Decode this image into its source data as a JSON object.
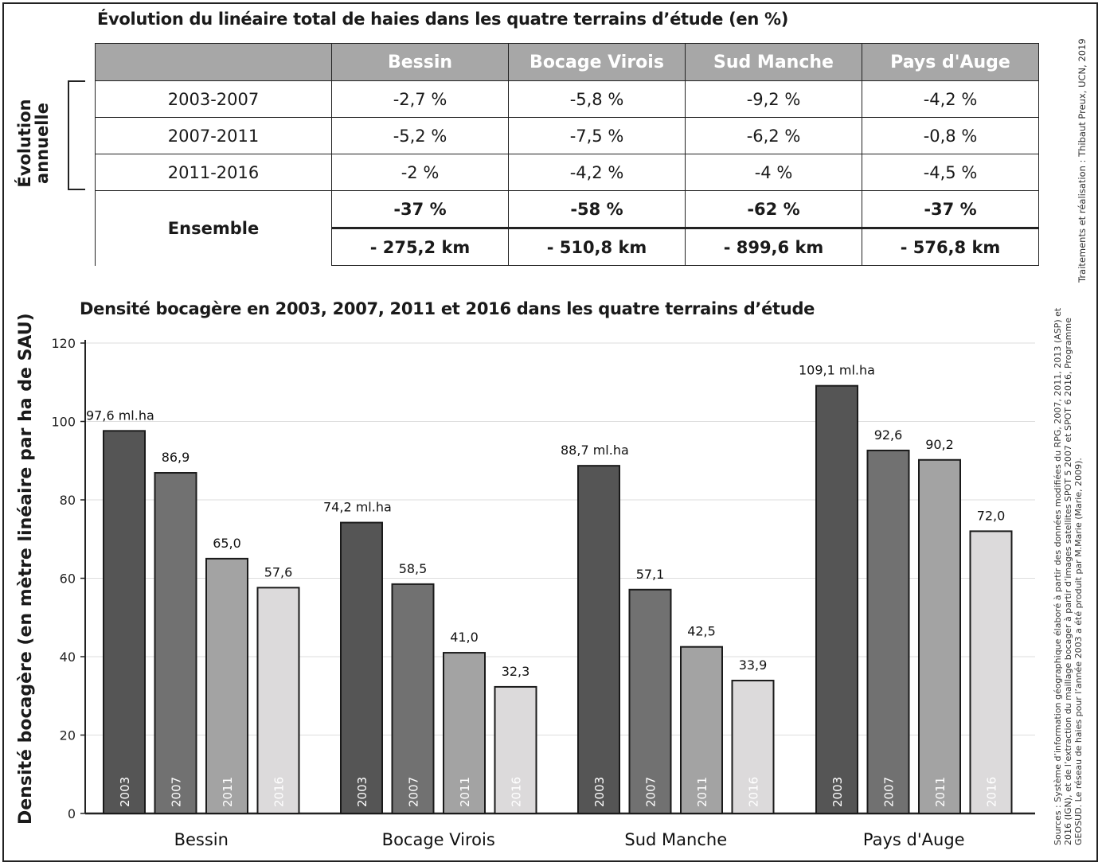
{
  "table_title": "Évolution du linéaire total de haies dans les quatre terrains d’étude (en %)",
  "table": {
    "headers": [
      "",
      "Bessin",
      "Bocage Virois",
      "Sud Manche",
      "Pays d'Auge"
    ],
    "group_label": [
      "Évolution",
      "annuelle"
    ],
    "rows": [
      {
        "period": "2003-2007",
        "values": [
          "-2,7 %",
          "-5,8 %",
          "-9,2 %",
          "-4,2 %"
        ]
      },
      {
        "period": "2007-2011",
        "values": [
          "-5,2 %",
          "-7,5 %",
          "-6,2 %",
          "-0,8 %"
        ]
      },
      {
        "period": "2011-2016",
        "values": [
          "-2 %",
          "-4,2 %",
          "-4 %",
          "-4,5 %"
        ]
      }
    ],
    "ensemble_label": "Ensemble",
    "ensemble_pct": [
      "-37 %",
      "-58 %",
      "-62 %",
      "-37 %"
    ],
    "ensemble_km": [
      "- 275,2 km",
      "- 510,8 km",
      "- 899,6 km",
      "- 576,8 km"
    ]
  },
  "credits": "Traitements et réalisation : Thibaut Preux, UCN, 2019",
  "sources": "Sources : Système d’information géographique élaboré à partir des données modifiées du RPG, 2007, 2011, 2013 (ASP) et 2016 (IGN), et de l’extraction du maillage bocager à partir d’images satellites SPOT 5 2007 et SPOT 6 2016, Programme GEOSUD. Le réseau de haies pour l’année 2003 a été produit par M.Marie (Marie, 2009).",
  "chart_data": {
    "type": "bar",
    "title": "Densité bocagère en 2003, 2007, 2011 et 2016 dans les quatre terrains d’étude",
    "ylabel": "Densité bocagère (en mètre linéaire par ha de SAU)",
    "xlabel": "",
    "ylim": [
      0,
      120
    ],
    "yticks": [
      0,
      20,
      40,
      60,
      80,
      100,
      120
    ],
    "grid": true,
    "categories": [
      "Bessin",
      "Bocage Virois",
      "Sud Manche",
      "Pays d'Auge"
    ],
    "series": [
      {
        "name": "2003",
        "color": "#555555",
        "values": [
          97.6,
          74.2,
          88.7,
          109.1
        ],
        "labels": [
          "97,6 ml.ha",
          "74,2 ml.ha",
          "88,7 ml.ha",
          "109,1 ml.ha"
        ]
      },
      {
        "name": "2007",
        "color": "#717171",
        "values": [
          86.9,
          58.5,
          57.1,
          92.6
        ],
        "labels": [
          "86,9",
          "58,5",
          "57,1",
          "92,6"
        ]
      },
      {
        "name": "2011",
        "color": "#a3a3a3",
        "values": [
          65.0,
          41.0,
          42.5,
          90.2
        ],
        "labels": [
          "65,0",
          "41,0",
          "42,5",
          "90,2"
        ]
      },
      {
        "name": "2016",
        "color": "#dcdadb",
        "values": [
          57.6,
          32.3,
          33.9,
          72.0
        ],
        "labels": [
          "57,6",
          "32,3",
          "33,9",
          "72,0"
        ]
      }
    ]
  }
}
